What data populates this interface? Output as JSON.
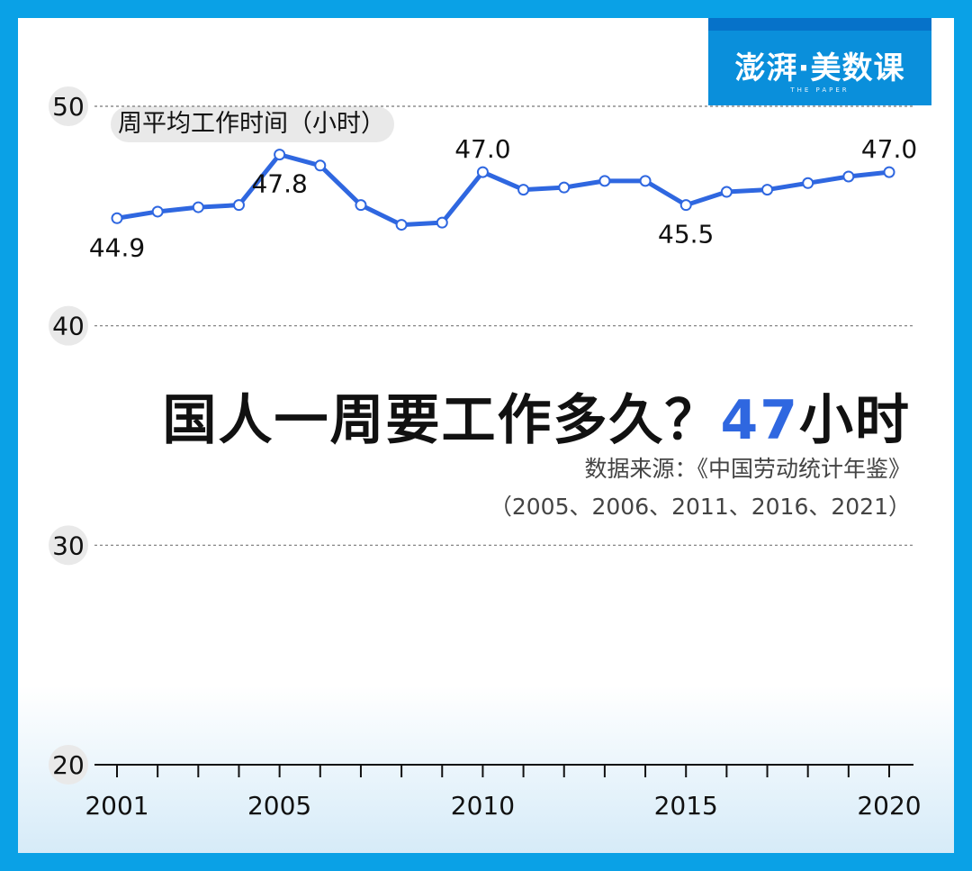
{
  "brand": {
    "logo_text": "澎湃·美数课",
    "logo_sub": "THE PAPER"
  },
  "title": {
    "main": "国人一周要工作多久？",
    "highlight": "47",
    "unit": "小时"
  },
  "source": {
    "line1": "数据来源：《中国劳动统计年鉴》",
    "line2": "（2005、2006、2011、2016、2021）"
  },
  "colors": {
    "frame": "#0aa1e6",
    "line": "#2f67e0",
    "highlight": "#2f67e0"
  },
  "chart_data": {
    "type": "line",
    "ylabel": "周平均工作时间（小时）",
    "xlabel": "",
    "ylim": [
      20,
      50
    ],
    "yticks": [
      50,
      40,
      30,
      20
    ],
    "xticks": [
      2001,
      2005,
      2010,
      2015,
      2020
    ],
    "series": [
      {
        "name": "周平均工作时间",
        "x": [
          2001,
          2002,
          2003,
          2004,
          2005,
          2006,
          2007,
          2008,
          2009,
          2010,
          2011,
          2012,
          2013,
          2014,
          2015,
          2016,
          2017,
          2018,
          2019,
          2020
        ],
        "values": [
          44.9,
          45.2,
          45.4,
          45.5,
          47.8,
          47.3,
          45.5,
          44.6,
          44.7,
          47.0,
          46.2,
          46.3,
          46.6,
          46.6,
          45.5,
          46.1,
          46.2,
          46.5,
          46.8,
          47.0
        ]
      }
    ],
    "annotations": [
      {
        "x": 2001,
        "text": "44.9",
        "pos": "below"
      },
      {
        "x": 2005,
        "text": "47.8",
        "pos": "below"
      },
      {
        "x": 2010,
        "text": "47.0",
        "pos": "above"
      },
      {
        "x": 2015,
        "text": "45.5",
        "pos": "below"
      },
      {
        "x": 2020,
        "text": "47.0",
        "pos": "above"
      }
    ],
    "grid": "dashed horizontal"
  }
}
